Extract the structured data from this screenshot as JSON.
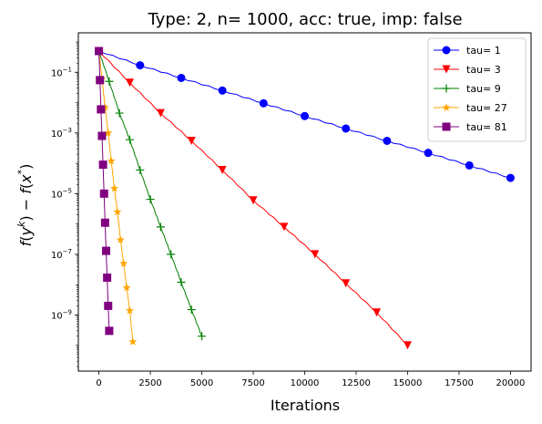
{
  "chart_data": {
    "type": "line",
    "title": "Type: 2, n= 1000, acc: true, imp: false",
    "xlabel": "Iterations",
    "ylabel": "f(y^k) − f(x^*)",
    "ylabel_parts": {
      "f1": "f",
      "open1": "(",
      "y": "y",
      "k": "k",
      "close1": ")",
      "minus": " − ",
      "f2": "f",
      "open2": "(",
      "x": "x",
      "star": "*",
      "close2": ")"
    },
    "xscale": "linear",
    "yscale": "log",
    "xlim": [
      -1000,
      21000
    ],
    "ylim_log10": [
      -10.85,
      0.3
    ],
    "x_ticks": [
      0,
      2500,
      5000,
      7500,
      10000,
      12500,
      15000,
      17500,
      20000
    ],
    "y_ticks_log10": [
      -9,
      -7,
      -5,
      -3,
      -1
    ],
    "legend_position": "top-right",
    "series": [
      {
        "name": "tau= 1",
        "color": "#0000ff",
        "marker": "circle",
        "x": [
          0,
          2000,
          4000,
          6000,
          8000,
          10000,
          12000,
          14000,
          16000,
          18000,
          20000
        ],
        "y": [
          0.5,
          0.17,
          0.065,
          0.025,
          0.0095,
          0.0036,
          0.0014,
          0.00055,
          0.00022,
          8.5e-05,
          3.3e-05
        ]
      },
      {
        "name": "tau= 3",
        "color": "#ff0000",
        "marker": "triangle-down",
        "x": [
          0,
          1500,
          3000,
          4500,
          6000,
          7500,
          9000,
          10500,
          12000,
          13500,
          15000
        ],
        "y": [
          0.5,
          0.045,
          0.0045,
          0.00055,
          6e-05,
          6e-06,
          8e-07,
          1e-07,
          1.1e-08,
          1.2e-09,
          1e-10
        ]
      },
      {
        "name": "tau= 9",
        "color": "#008000",
        "marker": "plus",
        "x": [
          0,
          500,
          1000,
          1500,
          2000,
          2500,
          3000,
          3500,
          4000,
          4500,
          5000
        ],
        "y": [
          0.5,
          0.05,
          0.0045,
          0.0006,
          6e-05,
          6.5e-06,
          8e-07,
          1e-07,
          1.2e-08,
          1.5e-09,
          2e-10
        ]
      },
      {
        "name": "tau= 27",
        "color": "#ffa500",
        "marker": "star",
        "x": [
          0,
          150,
          300,
          450,
          600,
          750,
          900,
          1050,
          1200,
          1350,
          1500,
          1650
        ],
        "y": [
          0.5,
          0.06,
          0.007,
          0.001,
          0.00012,
          1.5e-05,
          2.5e-06,
          3e-07,
          5e-08,
          8e-09,
          1.4e-09,
          1.3e-10
        ]
      },
      {
        "name": "tau= 81",
        "color": "#800080",
        "marker": "square",
        "x": [
          0,
          50,
          100,
          150,
          200,
          250,
          300,
          350,
          400,
          450,
          500
        ],
        "y": [
          0.5,
          0.055,
          0.006,
          0.0008,
          9e-05,
          1e-05,
          1.1e-06,
          1.3e-07,
          1.7e-08,
          2e-09,
          3e-10
        ]
      }
    ]
  }
}
